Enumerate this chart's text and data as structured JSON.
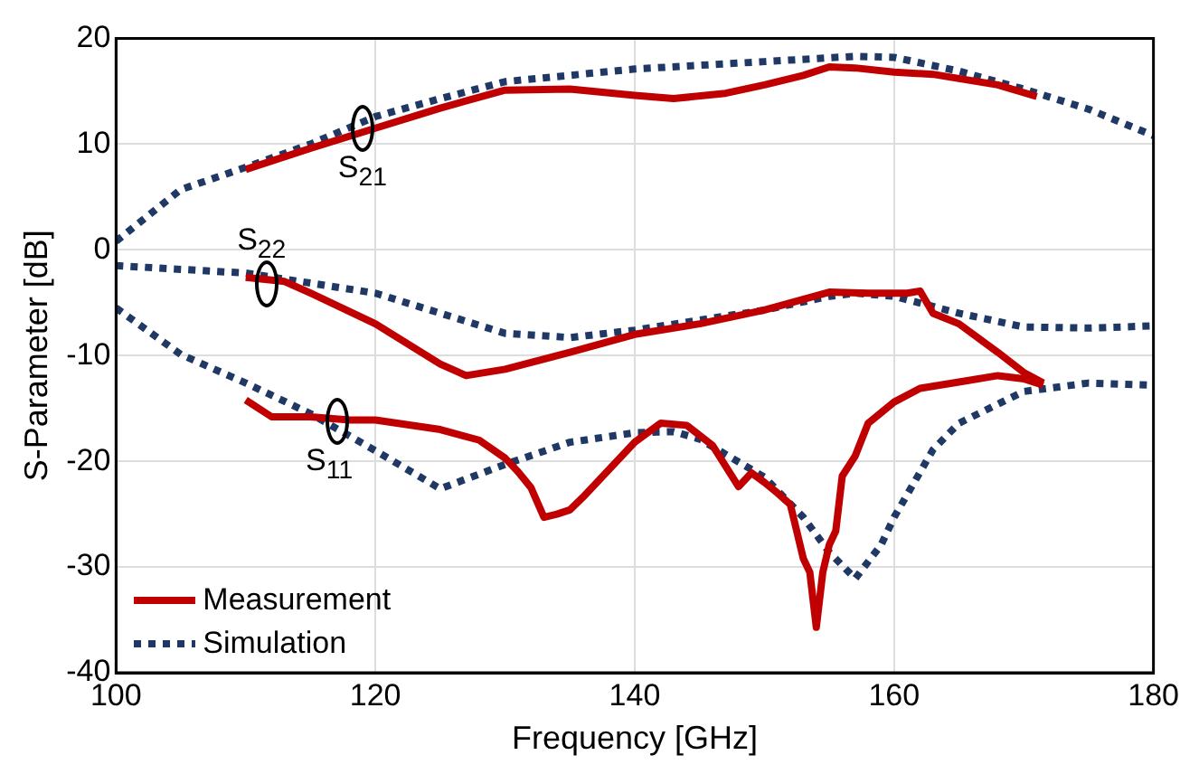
{
  "chart_data": {
    "type": "line",
    "xlabel": "Frequency [GHz]",
    "ylabel": "S-Parameter [dB]",
    "xlim": [
      100,
      180
    ],
    "xticks": [
      100,
      120,
      140,
      160,
      180
    ],
    "ylim": [
      -40,
      20
    ],
    "yticks": [
      -40,
      -30,
      -20,
      -10,
      0,
      10,
      20
    ],
    "grid": true,
    "legend": "bottom left",
    "marker": "none",
    "series": [
      {
        "name": "Measurement",
        "color": "#c00000",
        "line_style": "solid",
        "x": [
          110,
          115,
          120,
          125,
          130,
          135,
          140,
          143,
          147,
          150,
          153,
          155,
          157,
          160,
          163,
          165,
          168,
          171
        ],
        "values": [
          7.6,
          9.6,
          11.5,
          13.4,
          15.1,
          15.2,
          14.6,
          14.3,
          14.8,
          15.6,
          16.5,
          17.3,
          17.2,
          16.8,
          16.6,
          16.2,
          15.6,
          14.5
        ]
      },
      {
        "name": "Simulation",
        "color": "#1f3864",
        "line_style": "dotted",
        "x": [
          100,
          105,
          110,
          115,
          120,
          125,
          130,
          140,
          150,
          157,
          160,
          165,
          170,
          175,
          180
        ],
        "values": [
          0.8,
          5.7,
          7.8,
          10.0,
          12.6,
          14.3,
          15.9,
          17.1,
          17.8,
          18.3,
          18.2,
          16.9,
          15.2,
          13.3,
          10.8
        ]
      },
      {
        "color": "#c00000",
        "line_style": "solid",
        "x": [
          110,
          113,
          115,
          120,
          125,
          127,
          130,
          135,
          140,
          145,
          150,
          155,
          158,
          161,
          162,
          163,
          165,
          168,
          170,
          171.5
        ],
        "values": [
          -2.6,
          -3.0,
          -4.1,
          -7.0,
          -10.8,
          -11.9,
          -11.3,
          -9.7,
          -8.0,
          -7.0,
          -5.7,
          -4.0,
          -4.1,
          -4.1,
          -3.9,
          -6.0,
          -7.0,
          -9.7,
          -11.6,
          -12.6
        ]
      },
      {
        "color": "#1f3864",
        "line_style": "dotted",
        "x": [
          100,
          110,
          120,
          125,
          130,
          135,
          140,
          150,
          155,
          157,
          160,
          165,
          170,
          175,
          180
        ],
        "values": [
          -1.5,
          -2.2,
          -4.1,
          -6.0,
          -7.9,
          -8.3,
          -7.6,
          -5.7,
          -4.4,
          -4.1,
          -4.4,
          -6.0,
          -7.3,
          -7.4,
          -7.2
        ]
      },
      {
        "color": "#c00000",
        "line_style": "solid",
        "x": [
          110,
          112,
          115,
          118,
          120,
          125,
          128,
          130,
          131,
          132,
          133,
          134,
          135,
          136,
          138,
          140,
          142,
          144,
          146,
          148,
          149,
          150,
          151,
          152,
          153,
          153.5,
          154,
          154.5,
          155,
          155.5,
          156,
          157,
          158,
          160,
          162,
          165,
          168,
          170,
          171.5
        ],
        "values": [
          -14.2,
          -15.8,
          -15.8,
          -16.1,
          -16.1,
          -17.0,
          -18.0,
          -19.7,
          -21.0,
          -22.5,
          -25.3,
          -25.0,
          -24.6,
          -23.4,
          -20.8,
          -18.2,
          -16.4,
          -16.6,
          -18.5,
          -22.4,
          -21.1,
          -22.0,
          -23.0,
          -24.1,
          -29.2,
          -30.5,
          -35.7,
          -30.5,
          -27.9,
          -26.6,
          -21.4,
          -19.5,
          -16.4,
          -14.4,
          -13.1,
          -12.5,
          -11.9,
          -12.2,
          -12.8
        ]
      },
      {
        "color": "#1f3864",
        "line_style": "dotted",
        "x": [
          100,
          105,
          110,
          115,
          120,
          125,
          130,
          135,
          140,
          143,
          145,
          150,
          153,
          155,
          157,
          159,
          160,
          163,
          165,
          170,
          175,
          180
        ],
        "values": [
          -5.5,
          -9.9,
          -12.6,
          -15.5,
          -19.0,
          -22.6,
          -20.3,
          -18.2,
          -17.3,
          -17.2,
          -17.9,
          -21.5,
          -25.3,
          -28.6,
          -31.1,
          -27.9,
          -25.3,
          -18.9,
          -16.4,
          -13.4,
          -12.6,
          -12.8
        ]
      }
    ],
    "annotations": [
      {
        "text": "S$_{21}$",
        "x": 119,
        "y": 11.5
      },
      {
        "text": "S$_{22}$",
        "x": 111.5,
        "y": -3.2
      },
      {
        "text": "S$_{11}$",
        "x": 117,
        "y": -16.2
      }
    ]
  }
}
